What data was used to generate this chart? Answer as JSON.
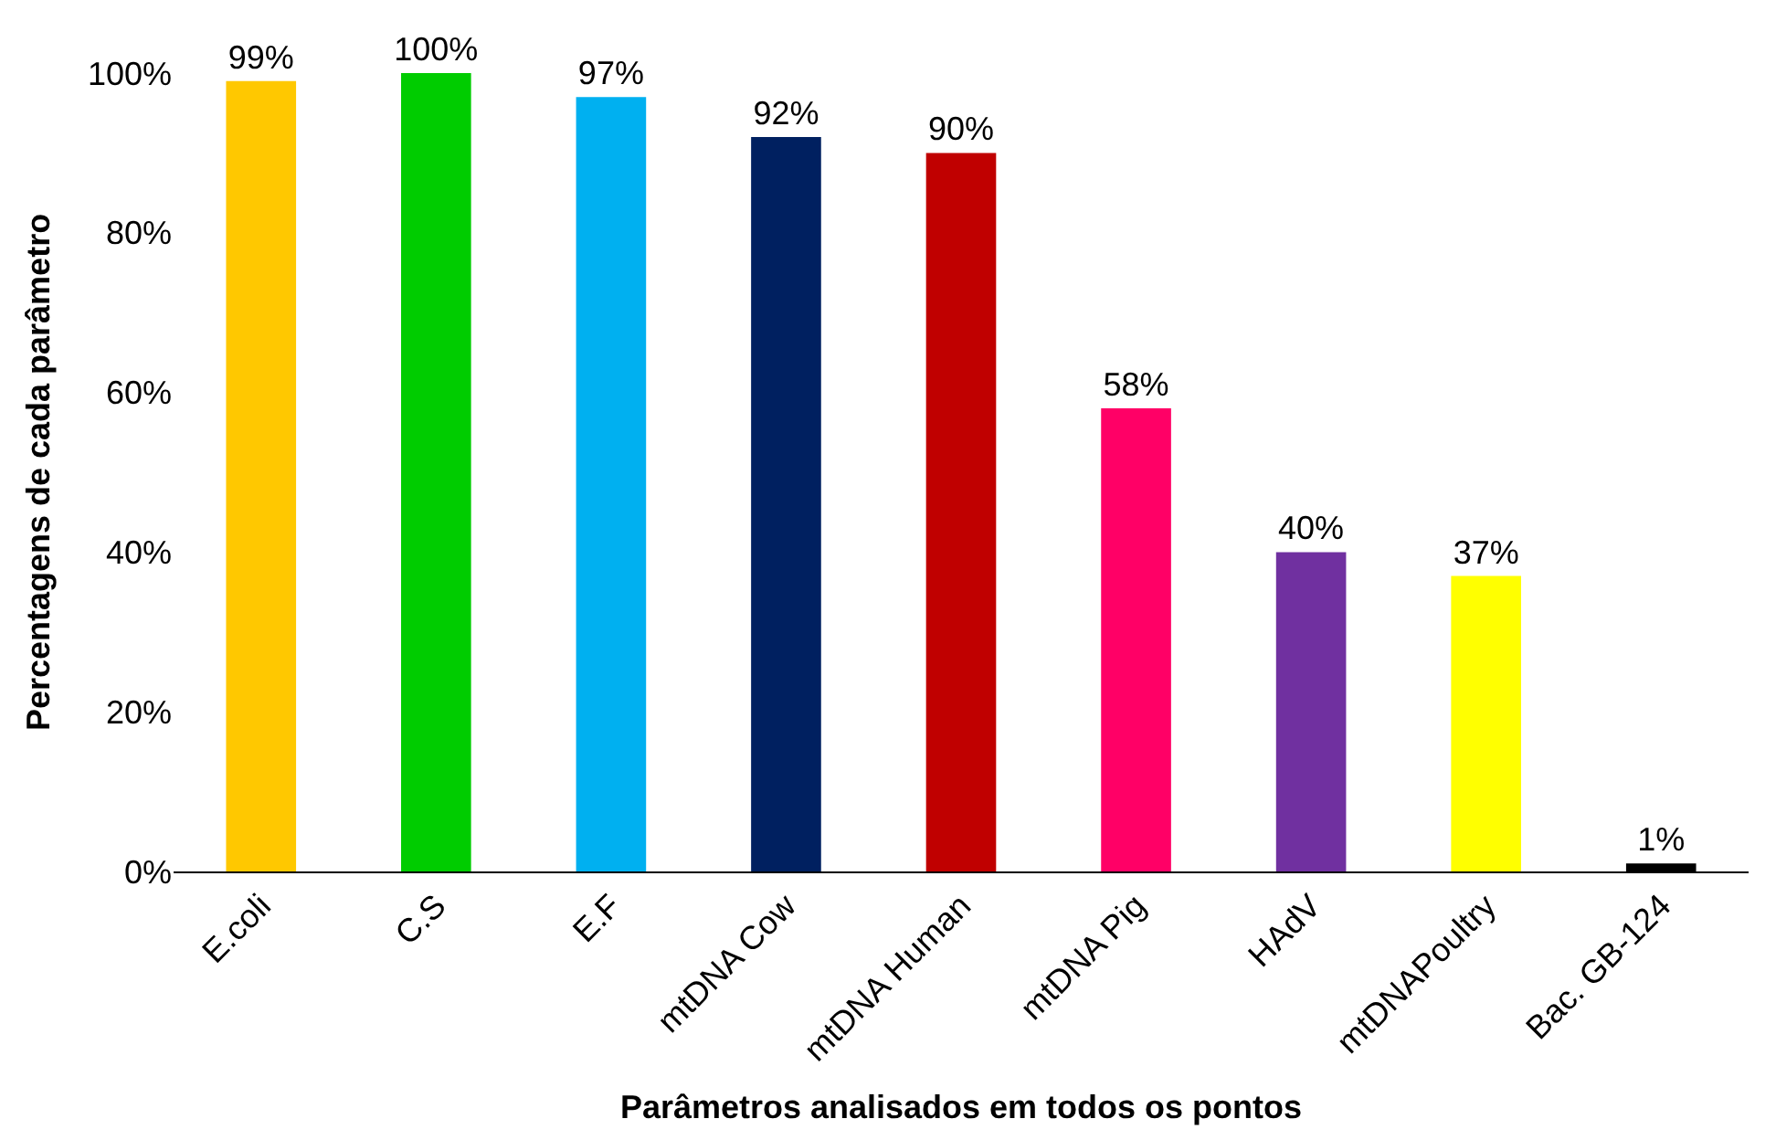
{
  "chart_data": {
    "type": "bar",
    "xlabel": "Parâmetros analisados em todos os pontos",
    "ylabel": "Percentagens de cada parâmetro",
    "categories": [
      "E.coli",
      "C.S",
      "E.F",
      "mtDNA Cow",
      "mtDNA Human",
      "mtDNA Pig",
      "HAdV",
      "mtDNAPoultry",
      "Bac. GB-124"
    ],
    "values": [
      99,
      100,
      97,
      92,
      90,
      58,
      40,
      37,
      1
    ],
    "colors": [
      "#ffc800",
      "#00cc00",
      "#00b0f0",
      "#002060",
      "#c00000",
      "#ff0066",
      "#7030a0",
      "#ffff00",
      "#000000"
    ],
    "value_labels": [
      "99%",
      "100%",
      "97%",
      "92%",
      "90%",
      "58%",
      "40%",
      "37%",
      "1%"
    ],
    "ylim": [
      0,
      100
    ],
    "yticks": [
      {
        "value": 0,
        "label": "0%"
      },
      {
        "value": 20,
        "label": "20%"
      },
      {
        "value": 40,
        "label": "40%"
      },
      {
        "value": 60,
        "label": "60%"
      },
      {
        "value": 80,
        "label": "80%"
      },
      {
        "value": 100,
        "label": "100%"
      }
    ]
  }
}
